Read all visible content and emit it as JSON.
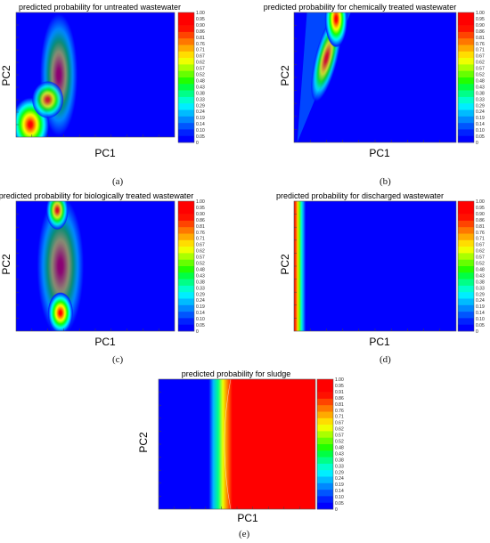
{
  "colors": {
    "scale": [
      "#0000ff",
      "#0022ff",
      "#0055ff",
      "#0088ff",
      "#00bbff",
      "#00eeff",
      "#00ffcc",
      "#00ff88",
      "#00ff44",
      "#22ff00",
      "#66ff00",
      "#aaff00",
      "#eeff00",
      "#ffdd00",
      "#ffaa00",
      "#ff7700",
      "#ff4400",
      "#ff1100",
      "#ff0000",
      "#ff0000"
    ],
    "plot_bg": "#0000ff",
    "contour_line": "#ffffff"
  },
  "chart_data": [
    {
      "type": "heatmap",
      "title": "predicted probability for untreated wastewater",
      "xlabel": "PC1",
      "ylabel": "PC2",
      "caption": "(a)",
      "colorbar_ticks": [
        "1.00",
        "0.95",
        "0.90",
        "0.86",
        "0.81",
        "0.76",
        "0.71",
        "0.67",
        "0.62",
        "0.57",
        "0.52",
        "0.48",
        "0.43",
        "0.38",
        "0.33",
        "0.29",
        "0.24",
        "0.19",
        "0.14",
        "0.10",
        "0.05",
        "0"
      ],
      "colorbar_range": [
        0,
        1
      ],
      "peaks": [
        {
          "x": 0.08,
          "y": 0.08,
          "value": 1.0
        },
        {
          "x": 0.27,
          "y": 0.48,
          "value": 0.5
        }
      ]
    },
    {
      "type": "heatmap",
      "title": "predicted probability for chemically treated wastewater",
      "xlabel": "PC1",
      "ylabel": "PC2",
      "caption": "(b)",
      "colorbar_ticks": [
        "1.00",
        "0.95",
        "0.90",
        "0.86",
        "0.81",
        "0.76",
        "0.71",
        "0.67",
        "0.62",
        "0.57",
        "0.52",
        "0.48",
        "0.43",
        "0.38",
        "0.33",
        "0.29",
        "0.24",
        "0.19",
        "0.14",
        "0.10",
        "0.05",
        "0"
      ],
      "colorbar_range": [
        0,
        1
      ],
      "peaks": [
        {
          "x": 0.25,
          "y": 0.95,
          "value": 1.0
        }
      ]
    },
    {
      "type": "heatmap",
      "title": "predicted probability for biologically treated wastewater",
      "xlabel": "PC1",
      "ylabel": "PC2",
      "caption": "(c)",
      "colorbar_ticks": [
        "1.00",
        "0.95",
        "0.90",
        "0.86",
        "0.81",
        "0.76",
        "0.71",
        "0.67",
        "0.62",
        "0.57",
        "0.52",
        "0.48",
        "0.43",
        "0.38",
        "0.33",
        "0.29",
        "0.24",
        "0.19",
        "0.14",
        "0.10",
        "0.05",
        "0"
      ],
      "colorbar_range": [
        0,
        1
      ],
      "peaks": [
        {
          "x": 0.27,
          "y": 0.12,
          "value": 1.0
        },
        {
          "x": 0.26,
          "y": 0.95,
          "value": 0.8
        }
      ]
    },
    {
      "type": "heatmap",
      "title": "predicted probability for discharged wastewater",
      "xlabel": "PC1",
      "ylabel": "PC2",
      "caption": "(d)",
      "colorbar_ticks": [
        "1.00",
        "0.95",
        "0.90",
        "0.86",
        "0.81",
        "0.76",
        "0.71",
        "0.67",
        "0.62",
        "0.57",
        "0.52",
        "0.48",
        "0.43",
        "0.38",
        "0.33",
        "0.29",
        "0.24",
        "0.19",
        "0.14",
        "0.10",
        "0.05",
        "0"
      ],
      "colorbar_range": [
        0,
        1
      ],
      "peaks": [
        {
          "x": 0.02,
          "y": 0.7,
          "value": 1.0
        }
      ]
    },
    {
      "type": "heatmap",
      "title": "predicted probability for sludge",
      "xlabel": "PC1",
      "ylabel": "PC2",
      "caption": "(e)",
      "colorbar_ticks": [
        "1.00",
        "0.95",
        "0.91",
        "0.86",
        "0.81",
        "0.76",
        "0.71",
        "0.67",
        "0.62",
        "0.57",
        "0.52",
        "0.48",
        "0.43",
        "0.38",
        "0.33",
        "0.29",
        "0.24",
        "0.19",
        "0.14",
        "0.10",
        "0.05",
        "0"
      ],
      "colorbar_range": [
        0,
        1
      ],
      "boundary_x": 0.4
    }
  ]
}
